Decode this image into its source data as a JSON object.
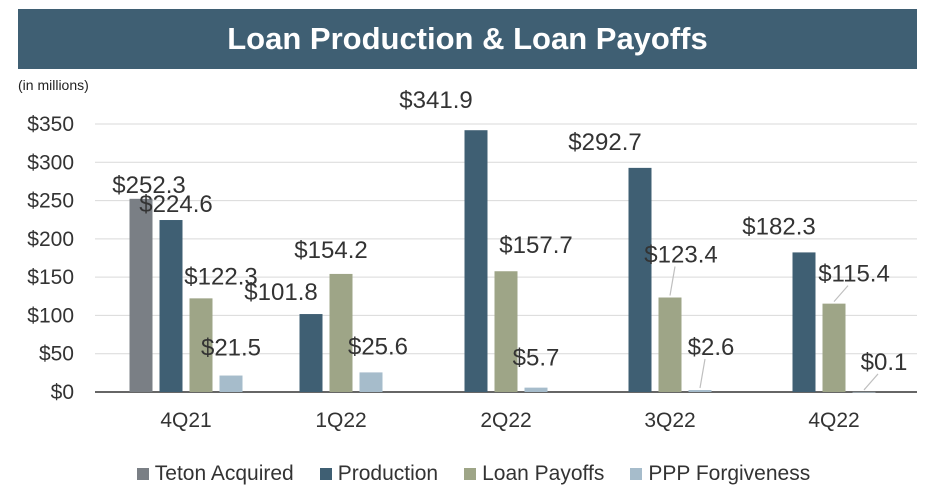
{
  "chart_data": {
    "type": "bar",
    "title": "Loan Production & Loan Payoffs",
    "units_note": "(in millions)",
    "categories": [
      "4Q21",
      "1Q22",
      "2Q22",
      "3Q22",
      "4Q22"
    ],
    "y_ticks": [
      "$0",
      "$50",
      "$100",
      "$150",
      "$200",
      "$250",
      "$300",
      "$350"
    ],
    "ylim": [
      0,
      350
    ],
    "grid": true,
    "legend_position": "bottom",
    "series": [
      {
        "name": "Teton Acquired",
        "color": "#7a7f85",
        "values": [
          252.3,
          null,
          null,
          null,
          null
        ],
        "labels": [
          "$252.3",
          "",
          "",
          "",
          ""
        ]
      },
      {
        "name": "Production",
        "color": "#3f5f73",
        "values": [
          224.6,
          101.8,
          341.9,
          292.7,
          182.3
        ],
        "labels": [
          "$224.6",
          "$101.8",
          "$341.9",
          "$292.7",
          "$182.3"
        ]
      },
      {
        "name": "Loan Payoffs",
        "color": "#9ea587",
        "values": [
          122.3,
          154.2,
          157.7,
          123.4,
          115.4
        ],
        "labels": [
          "$122.3",
          "$154.2",
          "$157.7",
          "$123.4",
          "$115.4"
        ]
      },
      {
        "name": "PPP Forgiveness",
        "color": "#a6bccb",
        "values": [
          21.5,
          25.6,
          5.7,
          2.6,
          0.1
        ],
        "labels": [
          "$21.5",
          "$25.6",
          "$5.7",
          "$2.6",
          "$0.1"
        ]
      }
    ]
  }
}
